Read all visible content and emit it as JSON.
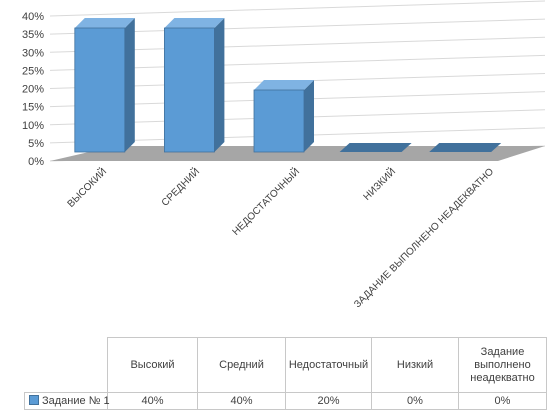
{
  "chart_data": {
    "type": "bar",
    "categories": [
      "Высокий",
      "Средний",
      "Недостаточный",
      "Низкий",
      "Задание выполнено неадекватно"
    ],
    "x_tick_labels": [
      "ВЫСОКИЙ",
      "СРЕДНИЙ",
      "НЕДОСТАТОЧНЫЙ",
      "НИЗКИЙ",
      "ЗАДАНИЕ ВЫПОЛНЕНО НЕАДЕКВАТНО"
    ],
    "series": [
      {
        "name": "Задание № 1",
        "values": [
          0.4,
          0.4,
          0.2,
          0.0,
          0.0
        ]
      }
    ],
    "table_labels": [
      "40%",
      "40%",
      "20%",
      "0%",
      "0%"
    ],
    "y_ticks": [
      "0%",
      "5%",
      "10%",
      "15%",
      "20%",
      "25%",
      "30%",
      "35%",
      "40%"
    ],
    "ylim": [
      0,
      0.4
    ],
    "style": "3d-column",
    "grid": true,
    "data_table": true,
    "colors": {
      "bar_front": "#5b9bd5",
      "bar_side": "#41719c",
      "bar_top": "#7fb3e3",
      "floor": "#a6a6a6",
      "grid": "#d9d9d9"
    }
  }
}
